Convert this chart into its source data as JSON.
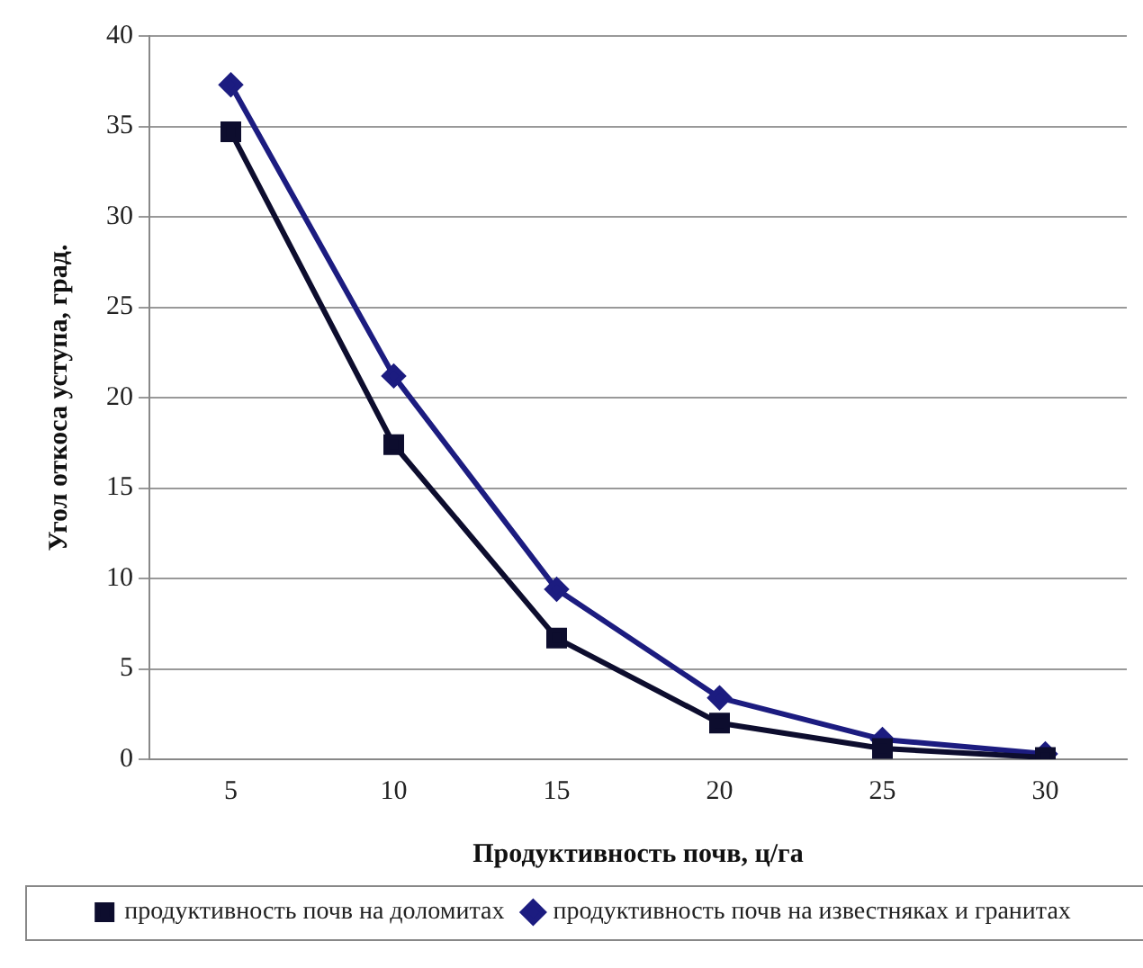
{
  "chart_data": {
    "type": "line",
    "xlabel": "Продуктивность почв, ц/га",
    "ylabel": "Угол откоса уступа, град.",
    "categories": [
      "5",
      "10",
      "15",
      "20",
      "25",
      "30"
    ],
    "series": [
      {
        "name": "продуктивность почв на известняках и гранитах",
        "color": "#1c1c80",
        "marker": "diamond",
        "values": [
          37.3,
          21.2,
          9.4,
          3.4,
          1.1,
          0.3
        ]
      },
      {
        "name": "продуктивность почв на доломитах",
        "color": "#0d0d2e",
        "marker": "square",
        "values": [
          34.7,
          17.4,
          6.7,
          2.0,
          0.6,
          0.1
        ]
      }
    ],
    "ylim": [
      0,
      40
    ],
    "yticks": [
      0,
      5,
      10,
      15,
      20,
      25,
      30,
      35,
      40
    ],
    "grid": "y",
    "legend": "bottom",
    "line_style": "solid"
  }
}
